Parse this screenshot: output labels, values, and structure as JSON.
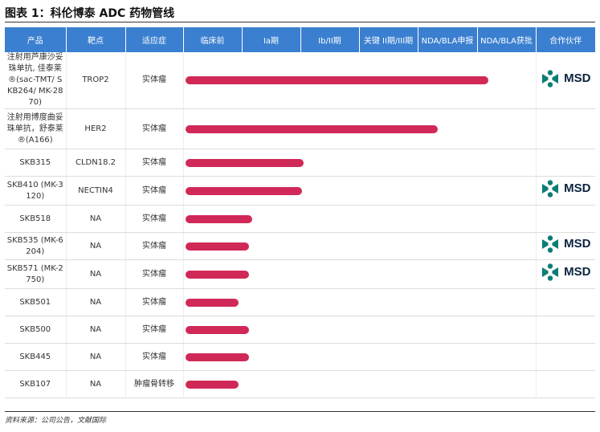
{
  "figure": {
    "title": "图表 1：科伦博泰 ADC 药物管线",
    "source": "资料来源：公司公告，文献国际"
  },
  "colors": {
    "header_bg": "#3a7fd0",
    "bar": "#d02957",
    "partner_logo": "#0a7e75"
  },
  "table": {
    "headers": [
      "产品",
      "靶点",
      "适应症",
      "临床前",
      "Ia期",
      "Ib/II期",
      "关键 II期/III期",
      "NDA/BLA申报",
      "NDA/BLA获批",
      "合作伙伴"
    ],
    "rows": [
      {
        "product": "注射用芦康沙妥珠单抗, 佳泰莱®(sac-TMT/ SKB264/ MK-2870)",
        "target": "TROP2",
        "indication": "实体瘤",
        "progress": 0.86,
        "partner": "MSD"
      },
      {
        "product": "注射用博度曲妥珠单抗，舒泰莱®(A166)",
        "target": "HER2",
        "indication": "实体瘤",
        "progress": 0.715,
        "partner": ""
      },
      {
        "product": "SKB315",
        "target": "CLDN18.2",
        "indication": "实体瘤",
        "progress": 0.335,
        "partner": ""
      },
      {
        "product": "SKB410 (MK-3120)",
        "target": "NECTIN4",
        "indication": "实体瘤",
        "progress": 0.33,
        "partner": "MSD"
      },
      {
        "product": "SKB518",
        "target": "NA",
        "indication": "实体瘤",
        "progress": 0.19,
        "partner": ""
      },
      {
        "product": "SKB535 (MK-6204)",
        "target": "NA",
        "indication": "实体瘤",
        "progress": 0.18,
        "partner": "MSD"
      },
      {
        "product": "SKB571 (MK-2750)",
        "target": "NA",
        "indication": "实体瘤",
        "progress": 0.18,
        "partner": "MSD"
      },
      {
        "product": "SKB501",
        "target": "NA",
        "indication": "实体瘤",
        "progress": 0.15,
        "partner": ""
      },
      {
        "product": "SKB500",
        "target": "NA",
        "indication": "实体瘤",
        "progress": 0.18,
        "partner": ""
      },
      {
        "product": "SKB445",
        "target": "NA",
        "indication": "实体瘤",
        "progress": 0.18,
        "partner": ""
      },
      {
        "product": "SKB107",
        "target": "NA",
        "indication": "肿瘤骨转移",
        "progress": 0.15,
        "partner": ""
      }
    ]
  }
}
